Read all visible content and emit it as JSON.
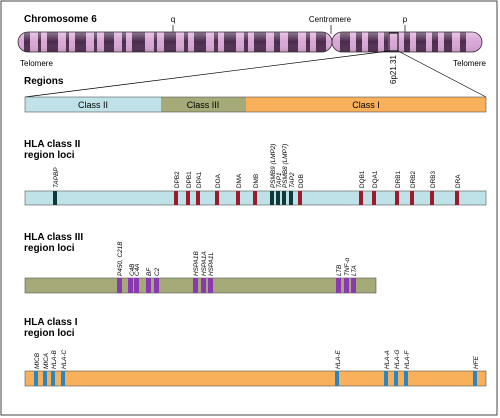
{
  "chromosome": {
    "title": "Chromosome 6",
    "arm_q": "q",
    "arm_p": "p",
    "centromere": "Centromere",
    "telomere_left": "Telomere",
    "telomere_right": "Telomere",
    "band_label": "6p21.31"
  },
  "regions": {
    "title": "Regions",
    "classes": [
      {
        "label": "Class II",
        "color": "#bfe2e8"
      },
      {
        "label": "Class III",
        "color": "#a5aa78"
      },
      {
        "label": "Class I",
        "color": "#f8b05a"
      }
    ]
  },
  "class2": {
    "title_line1": "HLA class II",
    "title_line2": "region loci",
    "bar_color": "#bfe2e8",
    "loci": [
      {
        "name": "TAPBP",
        "italic": true,
        "color": "#10393a"
      },
      {
        "name": "DPB2",
        "italic": false,
        "color": "#9a1c2c"
      },
      {
        "name": "DPB1",
        "italic": false,
        "color": "#9a1c2c"
      },
      {
        "name": "DPA1",
        "italic": false,
        "color": "#9a1c2c"
      },
      {
        "name": "DOA",
        "italic": false,
        "color": "#9a1c2c"
      },
      {
        "name": "DMA",
        "italic": false,
        "color": "#9a1c2c"
      },
      {
        "name": "DMB",
        "italic": false,
        "color": "#9a1c2c"
      },
      {
        "name": "PSMB9 (LMP2)",
        "italic": true,
        "color": "#10393a"
      },
      {
        "name": "TAP1",
        "italic": true,
        "color": "#10393a"
      },
      {
        "name": "PSMB8 (LMP7)",
        "italic": true,
        "color": "#10393a"
      },
      {
        "name": "TAP2",
        "italic": true,
        "color": "#10393a"
      },
      {
        "name": "DOB",
        "italic": false,
        "color": "#9a1c2c"
      },
      {
        "name": "DQB1",
        "italic": false,
        "color": "#9a1c2c"
      },
      {
        "name": "DQA1",
        "italic": false,
        "color": "#9a1c2c"
      },
      {
        "name": "DRB1",
        "italic": false,
        "color": "#9a1c2c"
      },
      {
        "name": "DRB2",
        "italic": false,
        "color": "#9a1c2c"
      },
      {
        "name": "DRB3",
        "italic": false,
        "color": "#9a1c2c"
      },
      {
        "name": "DRA",
        "italic": false,
        "color": "#9a1c2c"
      }
    ]
  },
  "class3": {
    "title_line1": "HLA class III",
    "title_line2": "region loci",
    "bar_color": "#a5aa78",
    "loci": [
      {
        "name": "P450, C21B",
        "italic": true,
        "color": "#8a39b0"
      },
      {
        "name": "C4B",
        "italic": true,
        "color": "#8a39b0"
      },
      {
        "name": "C4A",
        "italic": true,
        "color": "#8a39b0"
      },
      {
        "name": "BF",
        "italic": true,
        "color": "#8a39b0"
      },
      {
        "name": "C2",
        "italic": true,
        "color": "#8a39b0"
      },
      {
        "name": "HSPA1B",
        "italic": true,
        "color": "#8a39b0"
      },
      {
        "name": "HSPA1A",
        "italic": true,
        "color": "#8a39b0"
      },
      {
        "name": "HSPA1L",
        "italic": true,
        "color": "#8a39b0"
      },
      {
        "name": "LTB",
        "italic": true,
        "color": "#8a39b0"
      },
      {
        "name": "TNF-α",
        "italic": true,
        "color": "#8a39b0"
      },
      {
        "name": "LTA",
        "italic": true,
        "color": "#8a39b0"
      }
    ]
  },
  "class1": {
    "title_line1": "HLA class I",
    "title_line2": "region loci",
    "bar_color": "#f8b05a",
    "loci": [
      {
        "name": "MICB",
        "italic": true,
        "color": "#2b86c0"
      },
      {
        "name": "MICA",
        "italic": true,
        "color": "#2b86c0"
      },
      {
        "name": "HLA-B",
        "italic": true,
        "color": "#2b86c0"
      },
      {
        "name": "HLA-C",
        "italic": true,
        "color": "#2b86c0"
      },
      {
        "name": "HLA-E",
        "italic": true,
        "color": "#2b86c0"
      },
      {
        "name": "HLA-A",
        "italic": true,
        "color": "#2b86c0"
      },
      {
        "name": "HLA-G",
        "italic": true,
        "color": "#2b86c0"
      },
      {
        "name": "HLA-F",
        "italic": true,
        "color": "#2b86c0"
      },
      {
        "name": "HFE",
        "italic": true,
        "color": "#2b86c0"
      }
    ]
  }
}
